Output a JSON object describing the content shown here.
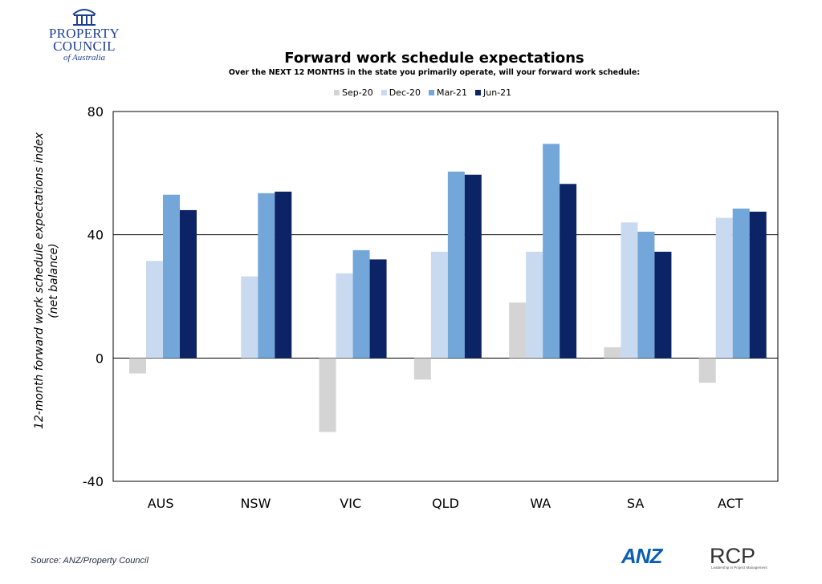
{
  "logo": {
    "line1": "PROPERTY",
    "line2": "COUNCIL",
    "line3": "of Australia"
  },
  "footer": {
    "source": "Source: ANZ/Property Council",
    "anz": "ANZ",
    "rcp": "RCP",
    "rcp_tagline": "Leadership in Project Management"
  },
  "colors": {
    "Sep-20": "#d4d4d4",
    "Dec-20": "#c9d9f0",
    "Mar-21": "#74a7d9",
    "Jun-21": "#0c2366"
  },
  "chart_data": {
    "type": "bar",
    "title": "Forward work schedule expectations",
    "subtitle": "Over the NEXT 12 MONTHS in the state you primarily operate, will your forward work schedule:",
    "ylabel_lines": [
      "12-month forward work schedule expectations index",
      "(net balance)"
    ],
    "ylim": [
      -40,
      80
    ],
    "yticks": [
      80,
      40,
      0,
      -40
    ],
    "grid": "horizontal at 40 and 0",
    "legend_position": "top",
    "categories": [
      "AUS",
      "NSW",
      "VIC",
      "QLD",
      "WA",
      "SA",
      "ACT"
    ],
    "series": [
      {
        "name": "Sep-20",
        "values": [
          -5,
          0,
          -24,
          -7,
          18,
          3.5,
          -8
        ]
      },
      {
        "name": "Dec-20",
        "values": [
          31.5,
          26.5,
          27.5,
          34.5,
          34.5,
          44,
          45.5
        ]
      },
      {
        "name": "Mar-21",
        "values": [
          53,
          53.5,
          35,
          60.5,
          69.5,
          41,
          48.5
        ]
      },
      {
        "name": "Jun-21",
        "values": [
          48,
          54,
          32,
          59.5,
          56.5,
          34.5,
          47.5
        ]
      }
    ]
  }
}
